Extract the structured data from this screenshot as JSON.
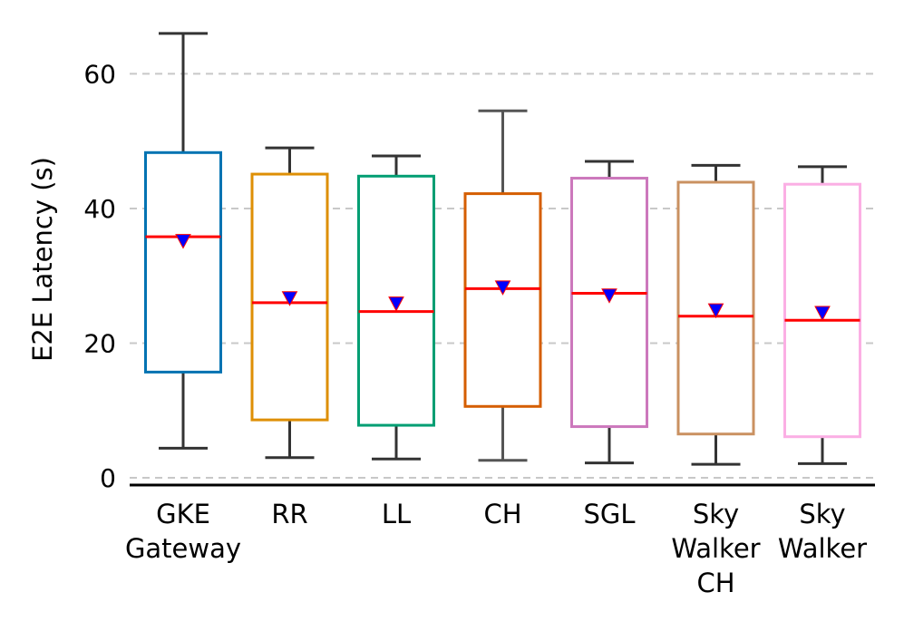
{
  "chart_data": {
    "type": "box",
    "title": "",
    "xlabel": "",
    "ylabel": "E2E Latency (s)",
    "ylim": [
      0,
      68
    ],
    "yticks": [
      0,
      20,
      40,
      60
    ],
    "grid": "horizontal-dashed",
    "categories": [
      {
        "lines": [
          "GKE",
          "Gateway"
        ],
        "color": "#0173b2",
        "whisker_color": "#333333",
        "min": 4.4,
        "q1": 15.7,
        "median": 35.8,
        "mean": 35.2,
        "q3": 48.3,
        "max": 66.0
      },
      {
        "lines": [
          "RR"
        ],
        "color": "#de8f05",
        "whisker_color": "#333333",
        "min": 3.0,
        "q1": 8.6,
        "median": 26.0,
        "mean": 26.7,
        "q3": 45.1,
        "max": 49.0
      },
      {
        "lines": [
          "LL"
        ],
        "color": "#029e73",
        "whisker_color": "#333333",
        "min": 2.8,
        "q1": 7.8,
        "median": 24.7,
        "mean": 25.9,
        "q3": 44.8,
        "max": 47.8
      },
      {
        "lines": [
          "CH"
        ],
        "color": "#d55e00",
        "whisker_color": "#555555",
        "min": 2.6,
        "q1": 10.6,
        "median": 28.1,
        "mean": 28.3,
        "q3": 42.2,
        "max": 54.5
      },
      {
        "lines": [
          "SGL"
        ],
        "color": "#cc78bc",
        "whisker_color": "#333333",
        "min": 2.2,
        "q1": 7.6,
        "median": 27.4,
        "mean": 27.1,
        "q3": 44.5,
        "max": 47.0
      },
      {
        "lines": [
          "Sky",
          "Walker",
          "CH"
        ],
        "color": "#ca9161",
        "whisker_color": "#333333",
        "min": 2.0,
        "q1": 6.5,
        "median": 24.0,
        "mean": 24.9,
        "q3": 43.9,
        "max": 46.4
      },
      {
        "lines": [
          "Sky",
          "Walker"
        ],
        "color": "#fbafe4",
        "whisker_color": "#333333",
        "min": 2.1,
        "q1": 6.1,
        "median": 23.4,
        "mean": 24.5,
        "q3": 43.6,
        "max": 46.2
      }
    ],
    "median_color": "#ff0000",
    "mean_marker_color": "#0000ff",
    "grid_color": "#c8c8c8"
  }
}
